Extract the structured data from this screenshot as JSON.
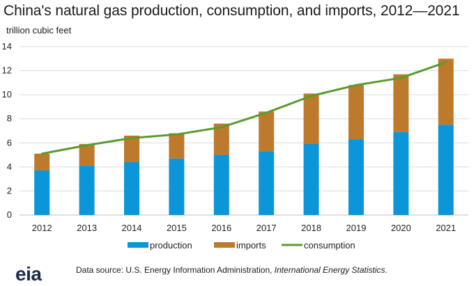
{
  "chart_data": {
    "type": "bar",
    "title": "China's natural gas production, consumption, and imports, 2012—2021",
    "ylabel": "trillion cubic feet",
    "xlabel": "",
    "categories": [
      "2012",
      "2013",
      "2014",
      "2015",
      "2016",
      "2017",
      "2018",
      "2019",
      "2020",
      "2021"
    ],
    "ylim": [
      0,
      14
    ],
    "yticks": [
      "0",
      "2",
      "4",
      "6",
      "8",
      "10",
      "12",
      "14"
    ],
    "stacked": true,
    "grid": true,
    "legend_position": "bottom",
    "series": [
      {
        "name": "production",
        "kind": "bar",
        "color": "#0a96d8",
        "values": [
          3.7,
          4.1,
          4.4,
          4.7,
          5.0,
          5.3,
          5.9,
          6.3,
          6.9,
          7.5
        ]
      },
      {
        "name": "imports",
        "kind": "bar",
        "color": "#bd7a2c",
        "values": [
          1.4,
          1.8,
          2.2,
          2.1,
          2.6,
          3.3,
          4.2,
          4.5,
          4.8,
          5.5
        ]
      },
      {
        "name": "consumption",
        "kind": "line",
        "color": "#5a9a2e",
        "values": [
          5.1,
          5.8,
          6.4,
          6.7,
          7.3,
          8.5,
          9.9,
          10.8,
          11.4,
          12.7
        ]
      }
    ]
  },
  "source": {
    "prefix": "Data source: U.S. Energy Information Administration, ",
    "italic": "International Energy Statistics",
    "suffix": "."
  },
  "logo": {
    "text": "eia"
  }
}
